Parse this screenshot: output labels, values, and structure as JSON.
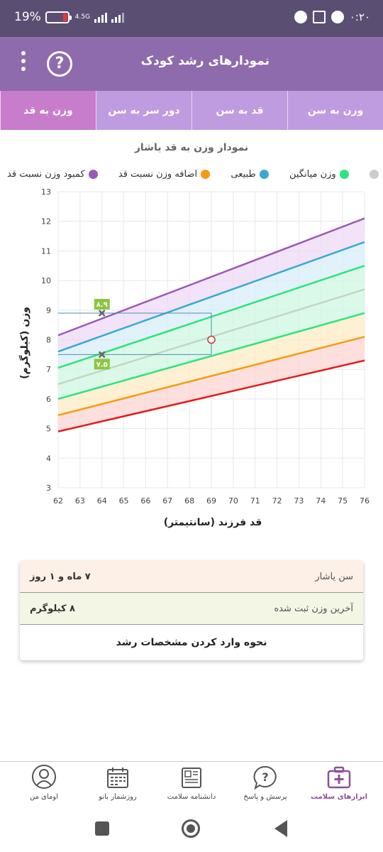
{
  "status_bar": {
    "battery": "19%",
    "network": "4.5G",
    "time": "۰:۲۰"
  },
  "app_bar": {
    "title": "نمودارهای رشد کودک",
    "help_label": "?"
  },
  "tabs": [
    {
      "label": "وزن به سن",
      "active": false
    },
    {
      "label": "قد به سن",
      "active": false
    },
    {
      "label": "دور سر به سن",
      "active": false
    },
    {
      "label": "وزن به قد",
      "active": true
    }
  ],
  "chart_title": "نمودار وزن به قد یاشار",
  "legend": [
    {
      "label": "کمبود وزن نسبت قد",
      "color": "#9b59b6"
    },
    {
      "label": "اضافه وزن نسبت قد",
      "color": "#f39c12"
    },
    {
      "label": "طبیعی",
      "color": "#3aa9d1"
    },
    {
      "label": "وزن میانگین",
      "color": "#2ee37c"
    },
    {
      "label": "",
      "color": "#cccccc"
    }
  ],
  "chart_data": {
    "type": "area",
    "xlabel": "قد فرزند (سانتیمتر)",
    "ylabel": "وزن (کیلوگرم)",
    "xlim": [
      62,
      76
    ],
    "ylim": [
      3,
      13
    ],
    "xticks": [
      "62",
      "63",
      "64",
      "65",
      "66",
      "67",
      "68",
      "69",
      "70",
      "71",
      "72",
      "73",
      "74",
      "75",
      "76"
    ],
    "yticks": [
      "3",
      "4",
      "5",
      "6",
      "7",
      "8",
      "9",
      "10",
      "11",
      "12",
      "13"
    ],
    "x": [
      62,
      76
    ],
    "series": [
      {
        "color": "#9b59b6",
        "values": [
          8.15,
          12.1
        ]
      },
      {
        "color": "#3aa9d1",
        "values": [
          7.6,
          11.3
        ]
      },
      {
        "color": "#2ee37c",
        "values": [
          7.05,
          10.5
        ]
      },
      {
        "color": "#c2d6c4",
        "values": [
          6.5,
          9.7
        ]
      },
      {
        "color": "#2ee37c",
        "values": [
          6.0,
          8.9
        ]
      },
      {
        "color": "#f39c12",
        "values": [
          5.45,
          8.1
        ]
      },
      {
        "color": "#e31b1b",
        "values": [
          4.9,
          7.3
        ]
      }
    ],
    "bands": [
      {
        "color": "#efd9f7"
      },
      {
        "color": "#d7eef8"
      },
      {
        "color": "#cff7e1"
      },
      {
        "color": "#cff7e1"
      },
      {
        "color": "#fdebc4"
      },
      {
        "color": "#fcd5d2"
      }
    ],
    "point": {
      "x": 69,
      "y": 8
    },
    "markers": [
      {
        "x": 64,
        "y": 8.9,
        "label": "۸.۹"
      },
      {
        "x": 64,
        "y": 7.5,
        "label": "۷.۵"
      }
    ]
  },
  "info": {
    "age_label": "سن یاشار",
    "age_value": "۷ ماه و ۱ روز",
    "weight_label": "آخرین وزن ثبت شده",
    "weight_value": "۸ کیلوگرم",
    "link": "نحوه وارد کردن مشخصات رشد"
  },
  "bottom_nav": [
    {
      "label": "ابزارهای سلامت",
      "icon": "health-tools-icon",
      "active": true
    },
    {
      "label": "پرسش و پاسخ",
      "icon": "question-icon",
      "active": false
    },
    {
      "label": "دانشنامه سلامت",
      "icon": "encyclopedia-icon",
      "active": false
    },
    {
      "label": "روزشمار بانو",
      "icon": "calendar-icon",
      "active": false
    },
    {
      "label": "اومای من",
      "icon": "profile-icon",
      "active": false
    }
  ]
}
